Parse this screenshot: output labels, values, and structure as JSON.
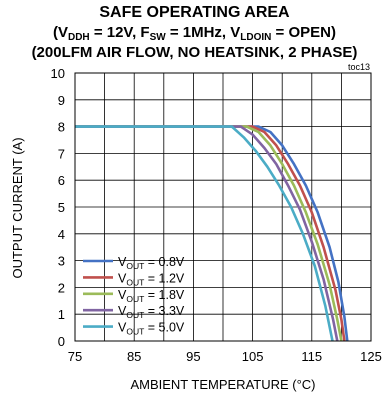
{
  "chart_data": {
    "type": "line",
    "title": {
      "line1": "SAFE OPERATING AREA",
      "line2": {
        "open": "(V",
        "sub1": "DDH",
        "t1": " = 12V, F",
        "sub2": "SW",
        "t2": " = 1MHz, V",
        "sub3": "LDOIN",
        "t3": " = OPEN)"
      },
      "line3": "(200LFM AIR FLOW, NO HEATSINK, 2 PHASE)"
    },
    "tag": "toc13",
    "xlabel": "AMBIENT TEMPERATURE (°C)",
    "ylabel": "OUTPUT CURRENT (A)",
    "xlim": [
      75,
      125
    ],
    "ylim": [
      0,
      10
    ],
    "xticks": [
      75,
      85,
      95,
      105,
      115,
      125
    ],
    "yticks": [
      0,
      1,
      2,
      3,
      4,
      5,
      6,
      7,
      8,
      9,
      10
    ],
    "grid": true,
    "legend_position": "bottom-left",
    "series": [
      {
        "label_main": "V",
        "label_sub": "OUT",
        "label_rest": " = 0.8V",
        "color": "#4472c4",
        "x": [
          75,
          106,
          108,
          110,
          112,
          114,
          116,
          118,
          119.5,
          120.5,
          121
        ],
        "y": [
          8,
          8,
          7.8,
          7.3,
          6.6,
          5.8,
          4.8,
          3.5,
          2.2,
          0.9,
          0
        ]
      },
      {
        "label_main": "V",
        "label_sub": "OUT",
        "label_rest": " = 1.2V",
        "color": "#c0504d",
        "x": [
          75,
          105,
          107,
          109,
          111,
          113,
          115,
          117,
          119,
          120,
          120.5
        ],
        "y": [
          8,
          8,
          7.8,
          7.3,
          6.6,
          5.8,
          4.8,
          3.5,
          1.9,
          0.8,
          0
        ]
      },
      {
        "label_main": "V",
        "label_sub": "OUT",
        "label_rest": " = 1.8V",
        "color": "#9bbb59",
        "x": [
          75,
          104,
          106,
          108,
          110,
          112,
          114,
          116,
          118,
          119.3,
          120
        ],
        "y": [
          8,
          8,
          7.8,
          7.3,
          6.6,
          5.8,
          4.8,
          3.6,
          2.1,
          0.8,
          0
        ]
      },
      {
        "label_main": "V",
        "label_sub": "OUT",
        "label_rest": " = 3.3V",
        "color": "#8064a2",
        "x": [
          75,
          103,
          105,
          107,
          109,
          111,
          113,
          115,
          117,
          118.6,
          119.3
        ],
        "y": [
          8,
          8,
          7.7,
          7.2,
          6.6,
          5.8,
          4.9,
          3.7,
          2.3,
          0.8,
          0
        ]
      },
      {
        "label_main": "V",
        "label_sub": "OUT",
        "label_rest": " = 5.0V",
        "color": "#4bacc6",
        "x": [
          75,
          101.5,
          103.5,
          105.5,
          107.5,
          109.5,
          111.5,
          113.5,
          115.5,
          117.3,
          118.5
        ],
        "y": [
          8,
          8,
          7.6,
          7.1,
          6.5,
          5.8,
          5.0,
          4.0,
          2.8,
          1.3,
          0
        ]
      }
    ]
  }
}
